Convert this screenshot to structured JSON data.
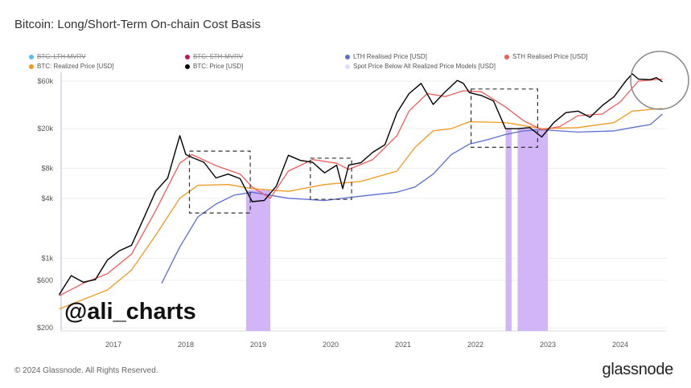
{
  "title": "Bitcoin: Long/Short-Term On-chain Cost Basis",
  "footer": "© 2024 Glassnode. All Rights Reserved.",
  "brand": "glassnode",
  "watermark": "@ali_charts",
  "legend": [
    {
      "label": "BTC: LTH-MVRV",
      "color": "#4fc3e8",
      "disabled": true
    },
    {
      "label": "BTC: STH-MVRV",
      "color": "#c2185b",
      "disabled": true
    },
    {
      "label": "LTH Realised Price [USD]",
      "color": "#5b6fd0",
      "disabled": false
    },
    {
      "label": "STH Realised Price [USD]",
      "color": "#f05a5a",
      "disabled": false
    },
    {
      "label": "BTC: Realized Price [USD]",
      "color": "#f29a1f",
      "disabled": false
    },
    {
      "label": "BTC: Price [USD]",
      "color": "#000000",
      "disabled": false
    },
    {
      "label": "Spot Price Below All Realized Price Models [USD]",
      "color": "#e4dcf5",
      "disabled": false
    }
  ],
  "chart_data": {
    "type": "line",
    "title": "Bitcoin: Long/Short-Term On-chain Cost Basis",
    "y_scale": "log",
    "ylim": [
      200,
      80000
    ],
    "xlim": [
      "2016-04",
      "2024-08"
    ],
    "y_ticks": [
      "$200",
      "$600",
      "$1k",
      "$4k",
      "$8k",
      "$20k",
      "$60k"
    ],
    "y_tick_values": [
      200,
      600,
      1000,
      4000,
      8000,
      20000,
      60000
    ],
    "x_ticks": [
      "2017",
      "2018",
      "2019",
      "2020",
      "2021",
      "2022",
      "2023",
      "2024"
    ],
    "grid": true,
    "legend_position": "top",
    "series": [
      {
        "name": "BTC: Price [USD]",
        "color": "#000000",
        "x": [
          "2016-04",
          "2016-06",
          "2016-08",
          "2016-10",
          "2016-12",
          "2017-02",
          "2017-04",
          "2017-06",
          "2017-08",
          "2017-10",
          "2017-12",
          "2018-01",
          "2018-02",
          "2018-04",
          "2018-06",
          "2018-08",
          "2018-10",
          "2018-12",
          "2019-02",
          "2019-04",
          "2019-06",
          "2019-08",
          "2019-10",
          "2019-12",
          "2020-02",
          "2020-03",
          "2020-04",
          "2020-06",
          "2020-08",
          "2020-10",
          "2020-12",
          "2021-02",
          "2021-04",
          "2021-06",
          "2021-08",
          "2021-10",
          "2021-11",
          "2021-12",
          "2022-02",
          "2022-04",
          "2022-06",
          "2022-08",
          "2022-10",
          "2022-12",
          "2023-02",
          "2023-04",
          "2023-06",
          "2023-08",
          "2023-10",
          "2023-12",
          "2024-02",
          "2024-03",
          "2024-04",
          "2024-06",
          "2024-07",
          "2024-08"
        ],
        "values": [
          430,
          670,
          575,
          610,
          960,
          1190,
          1350,
          2500,
          4700,
          6400,
          17000,
          11000,
          10300,
          9200,
          6400,
          7000,
          6300,
          3700,
          3800,
          5300,
          10800,
          9600,
          9200,
          7200,
          8600,
          5000,
          8600,
          9100,
          11600,
          13800,
          29000,
          45000,
          57000,
          35000,
          47000,
          61000,
          57000,
          46000,
          43000,
          38000,
          20000,
          20000,
          20500,
          16500,
          23000,
          29000,
          30000,
          26000,
          34000,
          42000,
          61000,
          71000,
          63000,
          62000,
          65000,
          59000
        ]
      },
      {
        "name": "STH Realised Price [USD]",
        "color": "#f05a5a",
        "x": [
          "2016-04",
          "2016-08",
          "2016-12",
          "2017-04",
          "2017-08",
          "2017-12",
          "2018-02",
          "2018-06",
          "2018-10",
          "2018-12",
          "2019-03",
          "2019-06",
          "2019-10",
          "2020-02",
          "2020-04",
          "2020-08",
          "2020-12",
          "2021-02",
          "2021-05",
          "2021-08",
          "2021-11",
          "2022-02",
          "2022-06",
          "2022-09",
          "2022-12",
          "2023-03",
          "2023-06",
          "2023-10",
          "2024-01",
          "2024-04",
          "2024-08"
        ],
        "values": [
          420,
          560,
          700,
          1100,
          3000,
          9000,
          11000,
          8500,
          7000,
          5200,
          4000,
          7500,
          9800,
          9000,
          7800,
          9800,
          17000,
          30000,
          45000,
          42000,
          48000,
          47000,
          33000,
          24000,
          19500,
          21000,
          27000,
          28000,
          37000,
          60000,
          63000
        ]
      },
      {
        "name": "LTH Realised Price [USD]",
        "color": "#5b6fd0",
        "x": [
          "2017-09",
          "2017-12",
          "2018-03",
          "2018-06",
          "2018-09",
          "2018-12",
          "2019-06",
          "2019-12",
          "2020-06",
          "2020-12",
          "2021-03",
          "2021-06",
          "2021-09",
          "2021-12",
          "2022-03",
          "2022-06",
          "2022-09",
          "2022-12",
          "2023-06",
          "2023-12",
          "2024-03",
          "2024-06",
          "2024-08"
        ],
        "values": [
          560,
          1300,
          2600,
          3500,
          4300,
          4600,
          4000,
          3800,
          4200,
          4600,
          5200,
          7000,
          11000,
          14000,
          15500,
          17500,
          19000,
          19500,
          18500,
          19000,
          20500,
          22000,
          28000
        ]
      },
      {
        "name": "BTC: Realized Price [USD]",
        "color": "#f29a1f",
        "x": [
          "2016-04",
          "2016-12",
          "2017-04",
          "2017-08",
          "2017-12",
          "2018-03",
          "2018-08",
          "2018-12",
          "2019-06",
          "2019-12",
          "2020-06",
          "2020-12",
          "2021-03",
          "2021-06",
          "2021-09",
          "2021-12",
          "2022-06",
          "2022-12",
          "2023-06",
          "2023-12",
          "2024-03",
          "2024-08"
        ],
        "values": [
          310,
          480,
          760,
          1700,
          4000,
          5400,
          5500,
          5000,
          4700,
          5500,
          5900,
          7500,
          13000,
          19000,
          20000,
          23500,
          23000,
          20000,
          20500,
          23000,
          30000,
          32000
        ]
      }
    ],
    "shaded_regions": {
      "name": "Spot Price Below All Realized Price Models [USD]",
      "color": "#c9a8f5",
      "ranges": [
        [
          "2018-11",
          "2019-03"
        ],
        [
          "2022-06",
          "2022-07"
        ],
        [
          "2022-08",
          "2023-01"
        ]
      ]
    }
  }
}
